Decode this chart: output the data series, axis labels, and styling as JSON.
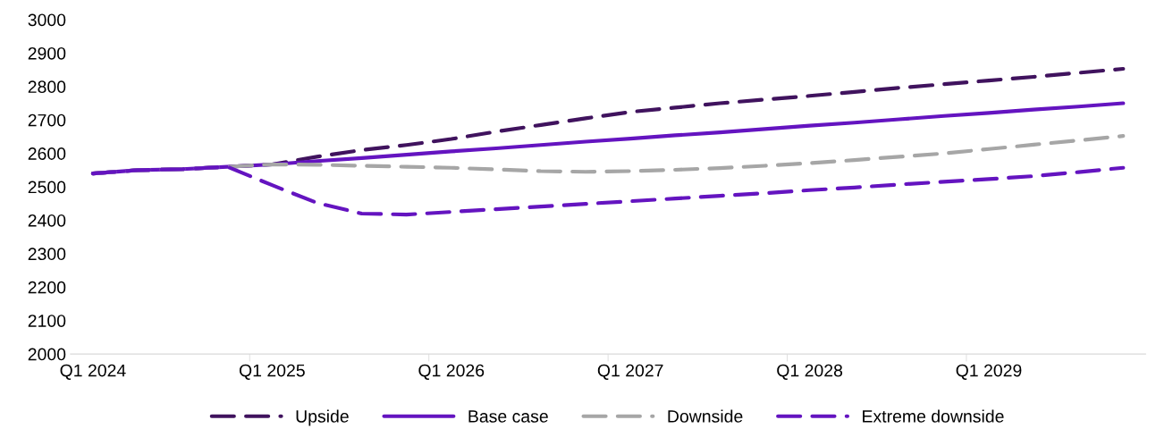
{
  "chart_data": {
    "type": "line",
    "categories": [
      "Q1 2024",
      null,
      null,
      null,
      "Q1 2025",
      null,
      null,
      null,
      "Q1 2026",
      null,
      null,
      null,
      "Q1 2027",
      null,
      null,
      null,
      "Q1 2028",
      null,
      null,
      null,
      "Q1 2029",
      null,
      null,
      null
    ],
    "series": [
      {
        "name": "Upside",
        "color": "#40135e",
        "line_style": "dashed",
        "values": [
          2540,
          2550,
          2553,
          2560,
          2567,
          2590,
          2610,
          2625,
          2643,
          2665,
          2685,
          2705,
          2724,
          2737,
          2750,
          2761,
          2772,
          2784,
          2796,
          2807,
          2818,
          2829,
          2841,
          2853
        ]
      },
      {
        "name": "Base case",
        "color": "#6414c0",
        "line_style": "solid",
        "values": [
          2540,
          2550,
          2553,
          2560,
          2567,
          2577,
          2586,
          2596,
          2606,
          2615,
          2625,
          2635,
          2644,
          2654,
          2663,
          2673,
          2683,
          2692,
          2702,
          2712,
          2721,
          2731,
          2740,
          2750
        ]
      },
      {
        "name": "Downside",
        "color": "#a6a6a6",
        "line_style": "dashed",
        "values": [
          2540,
          2550,
          2553,
          2560,
          2567,
          2566,
          2563,
          2560,
          2557,
          2552,
          2547,
          2545,
          2547,
          2551,
          2556,
          2563,
          2571,
          2580,
          2590,
          2600,
          2613,
          2626,
          2639,
          2652
        ]
      },
      {
        "name": "Extreme downside",
        "color": "#6414c0",
        "line_style": "dashed",
        "values": [
          2540,
          2550,
          2553,
          2560,
          2505,
          2452,
          2420,
          2417,
          2425,
          2433,
          2441,
          2449,
          2457,
          2465,
          2473,
          2481,
          2490,
          2498,
          2507,
          2515,
          2523,
          2532,
          2544,
          2557
        ]
      }
    ],
    "ylim": [
      2000,
      3000
    ],
    "yticks": [
      2000,
      2100,
      2200,
      2300,
      2400,
      2500,
      2600,
      2700,
      2800,
      2900,
      3000
    ],
    "grid": false,
    "legend": "bottom"
  }
}
